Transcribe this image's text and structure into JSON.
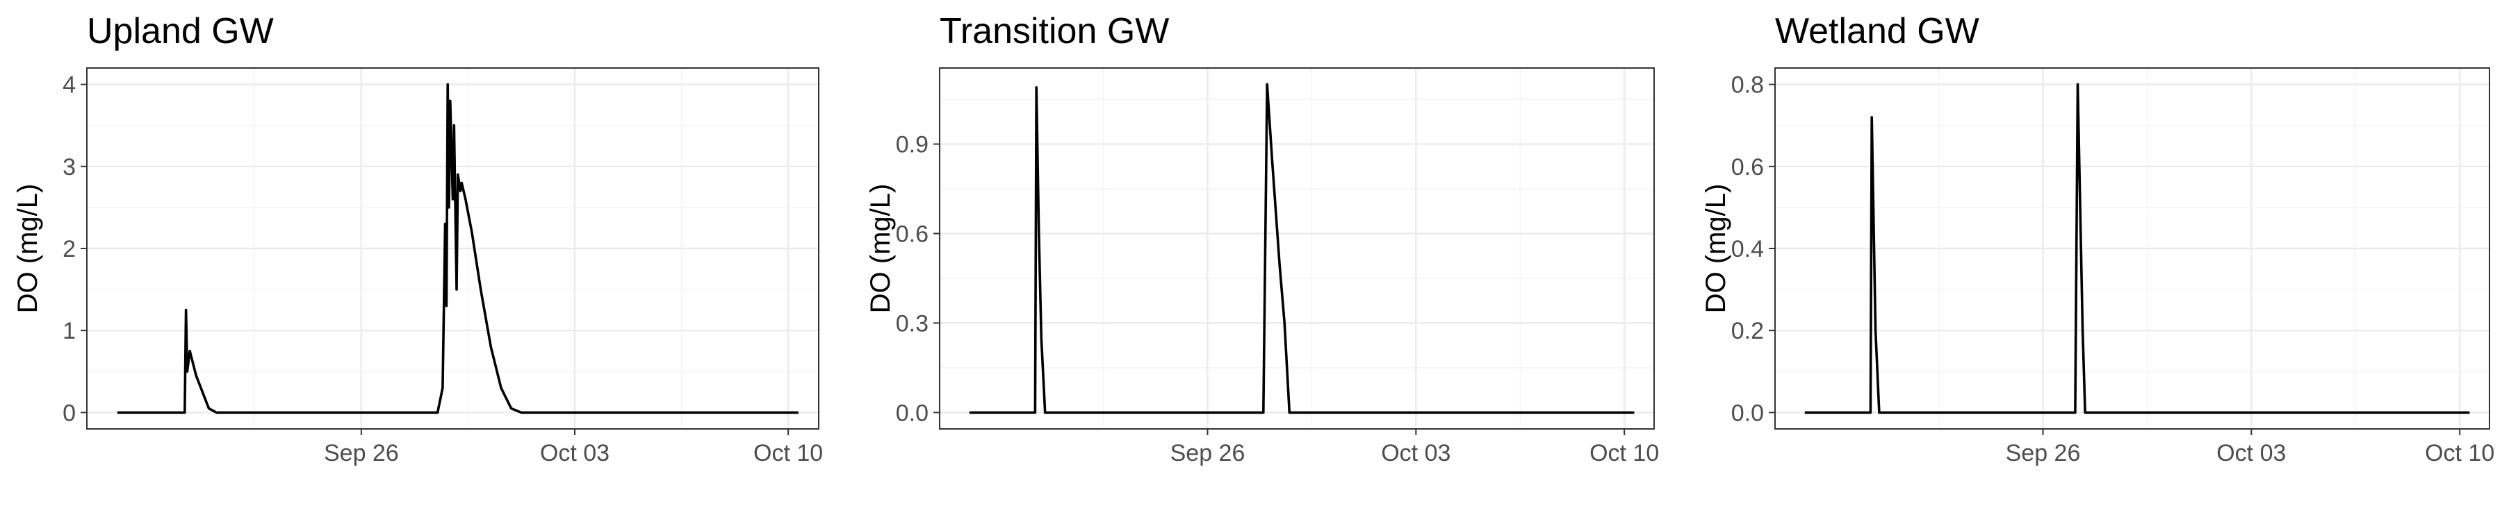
{
  "chart_data": [
    {
      "type": "line",
      "title": "Upland GW",
      "xlabel": "",
      "ylabel": "DO (mg/L)",
      "xlim": [
        "2023-09-17",
        "2023-10-11"
      ],
      "ylim": [
        -0.2,
        4.2
      ],
      "yticks": [
        0,
        1,
        2,
        3,
        4
      ],
      "ytick_labels": [
        "0",
        "1",
        "2",
        "3",
        "4"
      ],
      "xticks": [
        "2023-09-26",
        "2023-10-03",
        "2023-10-10"
      ],
      "xtick_labels": [
        "Sep 26",
        "Oct 03",
        "Oct 10"
      ],
      "grid": true,
      "series": [
        {
          "x": [
            "2023-09-18 00:00",
            "2023-09-20 05:00",
            "2023-09-20 06:00",
            "2023-09-20 07:00",
            "2023-09-20 09:00",
            "2023-09-20 14:00",
            "2023-09-21 00:00",
            "2023-09-21 06:00",
            "2023-09-28 12:00",
            "2023-09-28 16:00",
            "2023-09-28 18:00",
            "2023-09-28 19:00",
            "2023-09-28 20:00",
            "2023-09-28 21:00",
            "2023-09-28 22:00",
            "2023-09-29 00:00",
            "2023-09-29 01:00",
            "2023-09-29 03:00",
            "2023-09-29 04:00",
            "2023-09-29 06:00",
            "2023-09-29 07:00",
            "2023-09-29 10:00",
            "2023-09-29 15:00",
            "2023-09-29 22:00",
            "2023-09-30 06:00",
            "2023-09-30 14:00",
            "2023-09-30 22:00",
            "2023-10-01 06:00",
            "2023-10-01 12:00",
            "2023-10-10 08:00"
          ],
          "y": [
            0,
            0,
            1.25,
            0.5,
            0.75,
            0.45,
            0.05,
            0,
            0,
            0.3,
            2.3,
            1.3,
            4.0,
            2.5,
            3.8,
            2.6,
            3.5,
            1.5,
            2.9,
            2.7,
            2.8,
            2.6,
            2.2,
            1.5,
            0.8,
            0.3,
            0.05,
            0,
            0,
            0
          ]
        }
      ]
    },
    {
      "type": "line",
      "title": "Transition GW",
      "xlabel": "",
      "ylabel": "DO (mg/L)",
      "xlim": [
        "2023-09-17",
        "2023-10-11"
      ],
      "ylim": [
        -0.055,
        1.155
      ],
      "yticks": [
        0,
        0.3,
        0.6,
        0.9
      ],
      "ytick_labels": [
        "0.0",
        "0.3",
        "0.6",
        "0.9"
      ],
      "xticks": [
        "2023-09-26",
        "2023-10-03",
        "2023-10-10"
      ],
      "xtick_labels": [
        "Sep 26",
        "Oct 03",
        "Oct 10"
      ],
      "grid": true,
      "series": [
        {
          "x": [
            "2023-09-18 00:00",
            "2023-09-20 05:00",
            "2023-09-20 06:00",
            "2023-09-20 08:00",
            "2023-09-20 10:00",
            "2023-09-20 13:00",
            "2023-09-27 21:00",
            "2023-09-28 00:00",
            "2023-09-28 04:00",
            "2023-09-28 10:00",
            "2023-09-28 14:00",
            "2023-09-28 18:00",
            "2023-10-10 08:00"
          ],
          "y": [
            0,
            0,
            1.09,
            0.6,
            0.25,
            0,
            0,
            1.1,
            0.85,
            0.5,
            0.3,
            0,
            0
          ]
        }
      ]
    },
    {
      "type": "line",
      "title": "Wetland GW",
      "xlabel": "",
      "ylabel": "DO (mg/L)",
      "xlim": [
        "2023-09-17",
        "2023-10-11"
      ],
      "ylim": [
        -0.04,
        0.84
      ],
      "yticks": [
        0,
        0.2,
        0.4,
        0.6,
        0.8
      ],
      "ytick_labels": [
        "0.0",
        "0.2",
        "0.4",
        "0.6",
        "0.8"
      ],
      "xticks": [
        "2023-09-26",
        "2023-10-03",
        "2023-10-10"
      ],
      "xtick_labels": [
        "Sep 26",
        "Oct 03",
        "Oct 10"
      ],
      "grid": true,
      "series": [
        {
          "x": [
            "2023-09-18 00:00",
            "2023-09-20 05:00",
            "2023-09-20 06:00",
            "2023-09-20 09:00",
            "2023-09-20 12:00",
            "2023-09-27 02:00",
            "2023-09-27 04:00",
            "2023-09-27 08:00",
            "2023-09-27 10:00",
            "2023-10-10 08:00"
          ],
          "y": [
            0,
            0,
            0.72,
            0.2,
            0,
            0,
            0.8,
            0.2,
            0,
            0
          ]
        }
      ]
    }
  ]
}
